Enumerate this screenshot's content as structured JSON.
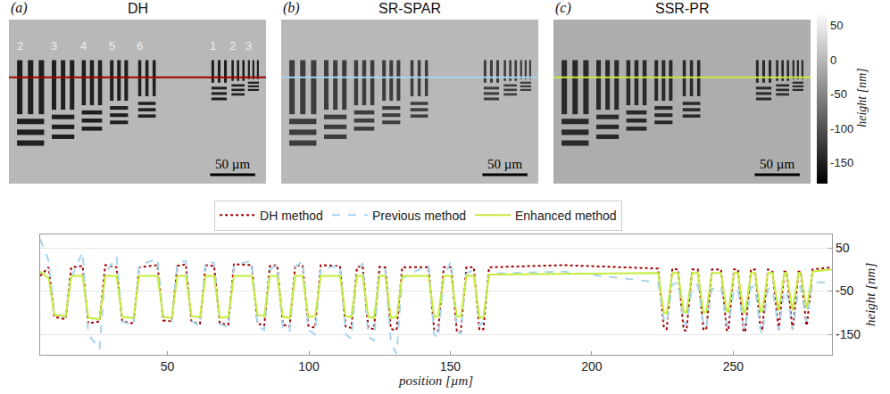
{
  "chart_data": [
    {
      "type": "image",
      "letter": "(a)",
      "title": "DH",
      "xlim": [
        0,
        285
      ],
      "ylim": [
        182,
        0
      ],
      "tick_labels": false,
      "background_height": 0,
      "bar_height": -150,
      "profile_y": 64,
      "line_color": "#a00000",
      "group_labels": [
        "2",
        "3",
        "4",
        "5",
        "6",
        "1",
        "2",
        "3"
      ],
      "scale_bar": {
        "length": 50,
        "label": "50 µm"
      }
    },
    {
      "type": "image",
      "letter": "(b)",
      "title": "SR-SPAR",
      "xlim": [
        0,
        285
      ],
      "ylim": [
        182,
        0
      ],
      "tick_labels": false,
      "background_height": 0,
      "bar_height": -120,
      "profile_y": 64,
      "line_color": "#a8d4ee",
      "scale_bar": {
        "length": 50,
        "label": "50 µm"
      }
    },
    {
      "type": "image",
      "letter": "(c)",
      "title": "SSR-PR",
      "xlim": [
        0,
        285
      ],
      "ylim": [
        182,
        0
      ],
      "tick_labels": false,
      "background_height": -10,
      "bar_height": -140,
      "profile_y": 64,
      "line_color": "#c4ec3c",
      "scale_bar": {
        "length": 50,
        "label": "50 µm"
      }
    },
    {
      "type": "line",
      "legend": "top",
      "grid": true,
      "x_label": "position [µm]",
      "y_label": "height [nm]",
      "xlim": [
        5,
        285
      ],
      "xticks": [
        50,
        100,
        150,
        200,
        250
      ],
      "ylim": [
        -197,
        81
      ],
      "yticks": [
        50,
        -50,
        -150
      ],
      "x": [
        5,
        8,
        10,
        14,
        16,
        20,
        22,
        26,
        28,
        32,
        34,
        38,
        40,
        46.5,
        48.5,
        51.5,
        53.5,
        56.5,
        58.5,
        61.5,
        63.5,
        66.5,
        68.5,
        71.5,
        73.5,
        79.8,
        81.8,
        84.2,
        86.2,
        88.8,
        90.8,
        93.2,
        95.2,
        97.8,
        99.8,
        102.2,
        104.2,
        111,
        113,
        115,
        117,
        119,
        121,
        123,
        125,
        127,
        129,
        131,
        133,
        142.3,
        144.3,
        145.7,
        147.7,
        150.3,
        152.3,
        153.7,
        155.7,
        158.3,
        160.3,
        161.7,
        163.7,
        190,
        223.5,
        225.5,
        226.5,
        228.5,
        230.5,
        232.5,
        233.5,
        235.5,
        237.5,
        239.5,
        240.5,
        242.5,
        245.7,
        247.7,
        248.3,
        250.3,
        251.7,
        253.7,
        254.3,
        256.3,
        257.7,
        259.7,
        260.3,
        262.3,
        263.9,
        265.9,
        266.1,
        268.1,
        268.9,
        270.9,
        271.1,
        273.1,
        273.9,
        275.9,
        276.1,
        278.1,
        285
      ],
      "series": [
        {
          "name": "DH method",
          "color": "#a00000",
          "line_style": "dot",
          "values": [
            -15,
            5,
            -110,
            -115,
            5,
            8,
            -125,
            -120,
            10,
            5,
            -120,
            -125,
            5,
            10,
            -118,
            -120,
            8,
            12,
            -122,
            -125,
            10,
            8,
            -125,
            -128,
            12,
            10,
            -125,
            -130,
            8,
            10,
            -128,
            -132,
            10,
            8,
            -130,
            -135,
            10,
            8,
            -132,
            -135,
            5,
            8,
            -135,
            -138,
            6,
            5,
            -138,
            -140,
            5,
            5,
            -140,
            -142,
            5,
            5,
            -142,
            -145,
            5,
            5,
            -140,
            -138,
            5,
            10,
            2,
            -135,
            -138,
            2,
            0,
            -140,
            -142,
            0,
            0,
            -138,
            -140,
            0,
            0,
            -140,
            -142,
            0,
            0,
            -145,
            -142,
            0,
            0,
            -140,
            -138,
            0,
            -5,
            -138,
            -140,
            -5,
            -5,
            -135,
            -138,
            -5,
            -5,
            -130,
            -128,
            0,
            5
          ]
        },
        {
          "name": "Previous method",
          "color": "#a8d4ee",
          "line_style": "dash",
          "values": [
            70,
            20,
            -100,
            -110,
            -20,
            40,
            -150,
            -185,
            -10,
            30,
            -120,
            -130,
            10,
            25,
            -110,
            -120,
            15,
            20,
            -120,
            -130,
            20,
            15,
            -125,
            -135,
            10,
            20,
            -130,
            -140,
            0,
            10,
            -135,
            -145,
            5,
            20,
            -140,
            -150,
            0,
            10,
            -150,
            -160,
            -10,
            15,
            -155,
            -165,
            -5,
            0,
            -170,
            -195,
            -20,
            10,
            -150,
            -160,
            -20,
            20,
            -140,
            -150,
            -10,
            0,
            -130,
            -120,
            -10,
            -5,
            -30,
            -115,
            -125,
            -35,
            -30,
            -120,
            -130,
            -40,
            -35,
            -125,
            -135,
            -45,
            -40,
            -125,
            -130,
            -45,
            -45,
            -130,
            -140,
            -40,
            -40,
            -140,
            -150,
            -45,
            -45,
            -130,
            -140,
            -50,
            -50,
            -135,
            -140,
            -45,
            -40,
            -120,
            -110,
            -30,
            -30
          ]
        },
        {
          "name": "Enhanced method",
          "color": "#c4ec3c",
          "line_style": "solid",
          "values": [
            -5,
            -20,
            -105,
            -108,
            -15,
            -15,
            -112,
            -115,
            -15,
            -15,
            -110,
            -112,
            -15,
            -15,
            -110,
            -112,
            -15,
            -15,
            -108,
            -110,
            -15,
            -15,
            -112,
            -110,
            -15,
            -15,
            -105,
            -108,
            -15,
            -15,
            -110,
            -112,
            -15,
            -15,
            -110,
            -108,
            -15,
            -15,
            -108,
            -110,
            -15,
            -15,
            -110,
            -112,
            -15,
            -15,
            -112,
            -110,
            -15,
            -15,
            -110,
            -108,
            -15,
            -15,
            -108,
            -110,
            -15,
            -15,
            -112,
            -110,
            -12,
            -10,
            -8,
            -100,
            -102,
            -8,
            -8,
            -98,
            -100,
            -8,
            -8,
            -100,
            -98,
            -8,
            -8,
            -95,
            -98,
            -8,
            -8,
            -100,
            -98,
            -8,
            -8,
            -98,
            -95,
            -8,
            -8,
            -92,
            -95,
            -8,
            -8,
            -95,
            -92,
            -8,
            -8,
            -90,
            -88,
            -5,
            0
          ]
        }
      ]
    }
  ],
  "target": {
    "groups": [
      {
        "centers": [
          12,
          24,
          36
        ],
        "width": 6,
        "y": [
          45,
          105
        ],
        "h_rows": [
          113,
          125,
          137
        ],
        "h_height": 6
      },
      {
        "centers": [
          50,
          60,
          70
        ],
        "width": 5,
        "y": [
          45,
          100
        ],
        "h_rows": [
          108,
          119,
          130
        ],
        "h_height": 5
      },
      {
        "centers": [
          83,
          92,
          101
        ],
        "width": 4.5,
        "y": [
          45,
          95
        ],
        "h_rows": [
          103,
          112,
          121
        ],
        "h_height": 4.5
      },
      {
        "centers": [
          114,
          122,
          130
        ],
        "width": 4,
        "y": [
          45,
          90
        ],
        "h_rows": [
          98,
          106,
          114
        ],
        "h_height": 4
      },
      {
        "centers": [
          145,
          153,
          161
        ],
        "width": 3.5,
        "y": [
          45,
          85
        ],
        "h_rows": [
          93,
          100,
          107
        ],
        "h_height": 3.5
      },
      {
        "centers": [
          226,
          233,
          240
        ],
        "width": 3,
        "y": [
          45,
          70
        ],
        "h_rows": [
          76,
          82,
          88
        ],
        "h_height": 3
      },
      {
        "centers": [
          248,
          254,
          260
        ],
        "width": 2.6,
        "y": [
          45,
          68
        ],
        "h_rows": [
          73,
          78,
          83
        ],
        "h_height": 2.6
      },
      {
        "centers": [
          266,
          271,
          276
        ],
        "width": 2.2,
        "y": [
          45,
          66
        ],
        "h_rows": [
          70,
          74,
          78
        ],
        "h_height": 2.2
      }
    ]
  },
  "colorbar": {
    "title": "height [nm]",
    "range": [
      -180,
      70
    ],
    "ticks": [
      50,
      0,
      -50,
      -100,
      -150
    ]
  }
}
